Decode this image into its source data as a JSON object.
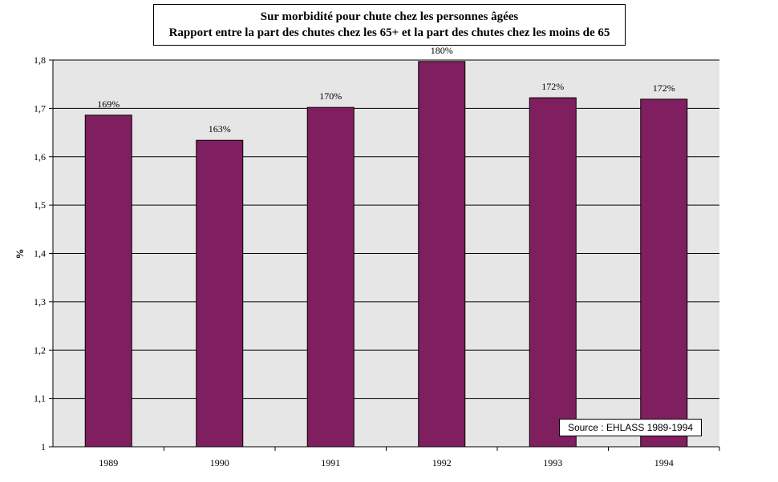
{
  "chart_data": {
    "type": "bar",
    "title": "Sur morbidité pour chute chez les personnes âgées",
    "subtitle": "Rapport entre la part des chutes chez les 65+  et la part des chutes  chez les moins de 65",
    "xlabel": "",
    "ylabel": "%",
    "categories": [
      "1989",
      "1990",
      "1991",
      "1992",
      "1993",
      "1994"
    ],
    "values": [
      1.686,
      1.634,
      1.702,
      1.797,
      1.722,
      1.719
    ],
    "data_labels": [
      "169%",
      "163%",
      "170%",
      "180%",
      "172%",
      "172%"
    ],
    "ylim": [
      1,
      1.8
    ],
    "yticks": [
      "1",
      "1,1",
      "1,2",
      "1,3",
      "1,4",
      "1,5",
      "1,6",
      "1,7",
      "1,8"
    ],
    "grid": true,
    "legend": "none",
    "source_note": "Source : EHLASS 1989-1994",
    "colors": {
      "bar": "#7F1F5F",
      "plot_background": "#E6E6E6",
      "gridline": "#000000"
    }
  }
}
